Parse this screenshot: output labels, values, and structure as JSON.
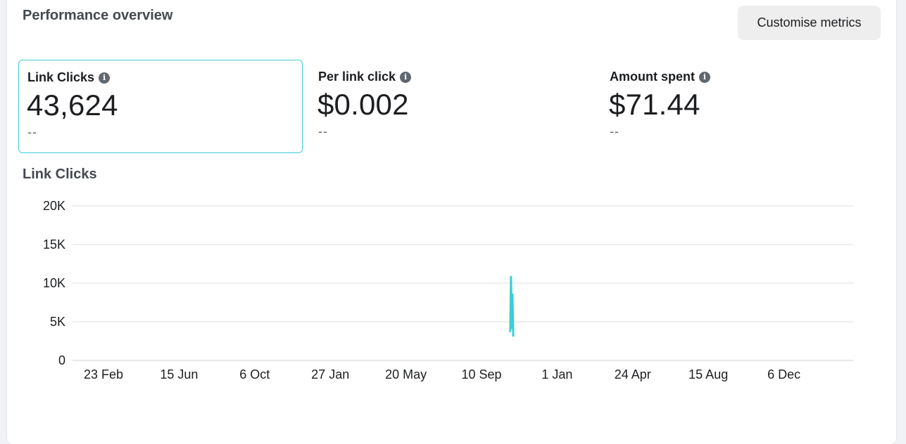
{
  "header": {
    "title": "Performance overview",
    "customise_label": "Customise metrics"
  },
  "metrics": [
    {
      "label": "Link Clicks",
      "value": "43,624",
      "delta": "--",
      "selected": true,
      "icon": "info-icon"
    },
    {
      "label": "Per link click",
      "value": "$0.002",
      "delta": "--",
      "selected": false,
      "icon": "info-icon"
    },
    {
      "label": "Amount spent",
      "value": "$71.44",
      "delta": "--",
      "selected": false,
      "icon": "info-icon"
    }
  ],
  "chart": {
    "title": "Link Clicks"
  },
  "colors": {
    "accent": "#3ccfd5",
    "grid": "#dddfe2",
    "axis_text": "#1c1e21"
  },
  "chart_data": {
    "type": "line",
    "title": "Link Clicks",
    "xlabel": "",
    "ylabel": "",
    "ylim": [
      0,
      20000
    ],
    "yticks": [
      0,
      5000,
      10000,
      15000,
      20000
    ],
    "ytick_labels": [
      "0",
      "5K",
      "10K",
      "15K",
      "20K"
    ],
    "x_tick_labels": [
      "23 Feb",
      "15 Jun",
      "6 Oct",
      "27 Jan",
      "20 May",
      "10 Sep",
      "1 Jan",
      "24 Apr",
      "15 Aug",
      "6 Dec"
    ],
    "grid": true,
    "series": [
      {
        "values": [
          {
            "x": 5.38,
            "y": 3800
          },
          {
            "x": 5.39,
            "y": 10800
          },
          {
            "x": 5.4,
            "y": 4200
          },
          {
            "x": 5.41,
            "y": 8500
          },
          {
            "x": 5.42,
            "y": 3200
          }
        ]
      }
    ]
  }
}
